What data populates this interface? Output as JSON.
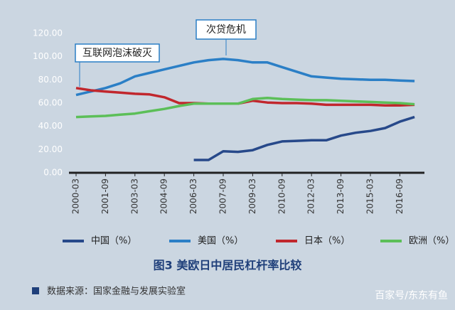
{
  "chart_data": {
    "type": "line",
    "title": "图3  美欧日中居民杠杆率比较",
    "source": "数据来源：国家金融与发展实验室",
    "watermark": "百家号/东东有鱼",
    "annotations": [
      "次贷危机",
      "互联网泡沫破灭"
    ],
    "categories": [
      "2000-03",
      null,
      "2001-09",
      null,
      "2003-03",
      null,
      "2004-09",
      null,
      "2006-03",
      null,
      "2007-09",
      null,
      "2009-03",
      null,
      "2010-09",
      null,
      "2012-03",
      null,
      "2013-09",
      null,
      "2015-03",
      null,
      "2016-09",
      null
    ],
    "series": [
      {
        "name": "中国（%）",
        "color": "#27498a",
        "values": [
          null,
          null,
          null,
          null,
          null,
          null,
          null,
          null,
          11,
          11,
          18.5,
          18,
          19.5,
          24,
          27,
          27.5,
          28,
          28,
          32,
          34.5,
          36,
          38.5,
          44,
          48
        ]
      },
      {
        "name": "美国（%）",
        "color": "#2b7fc6",
        "values": [
          67,
          70,
          73,
          77,
          83,
          86,
          89,
          92,
          95,
          97,
          98,
          97,
          95,
          95,
          91,
          87,
          83,
          82,
          81,
          80.5,
          80,
          80,
          79.5,
          79
        ]
      },
      {
        "name": "日本（%）",
        "color": "#c1272d",
        "values": [
          73,
          71,
          70,
          69,
          68,
          67.5,
          65,
          60,
          60,
          59.5,
          59.5,
          59.5,
          62,
          60.5,
          60,
          60,
          59.5,
          58.5,
          58.5,
          58.5,
          58.5,
          58,
          58,
          58.5
        ]
      },
      {
        "name": "欧洲（%）",
        "color": "#5cbf58",
        "values": [
          48,
          48.5,
          49,
          50,
          51,
          53,
          55,
          57.5,
          59.5,
          59.5,
          59.5,
          59.5,
          63.5,
          64.5,
          63.5,
          63,
          62.5,
          62.5,
          62,
          61.5,
          61,
          60.5,
          60,
          59
        ]
      }
    ],
    "ylim": [
      0,
      120
    ],
    "yticks": [
      {
        "value": 0,
        "label": "0.00"
      },
      {
        "value": 20,
        "label": "20.00"
      },
      {
        "value": 40,
        "label": "40.00"
      },
      {
        "value": 60,
        "label": "60.00"
      },
      {
        "value": 80,
        "label": "80.00"
      },
      {
        "value": 100,
        "label": "100.00"
      },
      {
        "value": 120,
        "label": "120.00"
      }
    ]
  }
}
